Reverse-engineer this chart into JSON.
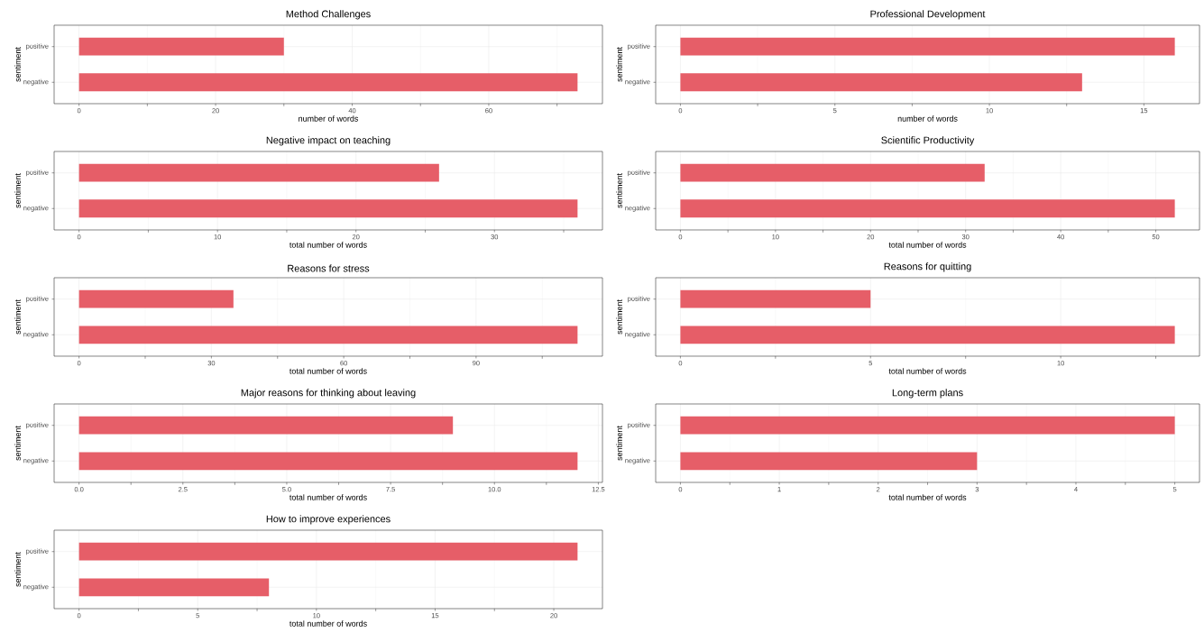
{
  "chart_data": [
    {
      "type": "bar",
      "orientation": "horizontal",
      "title": "Method Challenges",
      "xlabel": "number of words",
      "ylabel": "sentiment",
      "categories": [
        "positive",
        "negative"
      ],
      "values": [
        30,
        73
      ],
      "color": "#e65e68",
      "xlim": [
        -3.65,
        76.65
      ],
      "xticks": [
        0,
        20,
        40,
        60
      ],
      "grid": true
    },
    {
      "type": "bar",
      "orientation": "horizontal",
      "title": "Professional Development",
      "xlabel": "number of words",
      "ylabel": "sentiment",
      "categories": [
        "positive",
        "negative"
      ],
      "values": [
        16,
        13
      ],
      "color": "#e65e68",
      "xlim": [
        -0.8,
        16.8
      ],
      "xticks": [
        0,
        5,
        10,
        15
      ],
      "grid": true
    },
    {
      "type": "bar",
      "orientation": "horizontal",
      "title": "Negative impact on teaching",
      "xlabel": "total number of words",
      "ylabel": "sentiment",
      "categories": [
        "positive",
        "negative"
      ],
      "values": [
        26,
        36
      ],
      "color": "#e65e68",
      "xlim": [
        -1.8,
        37.8
      ],
      "xticks": [
        0,
        10,
        20,
        30
      ],
      "grid": true
    },
    {
      "type": "bar",
      "orientation": "horizontal",
      "title": "Scientific Productivity",
      "xlabel": "total number of words",
      "ylabel": "sentiment",
      "categories": [
        "positive",
        "negative"
      ],
      "values": [
        32,
        52
      ],
      "color": "#e65e68",
      "xlim": [
        -2.6,
        54.6
      ],
      "xticks": [
        0,
        10,
        20,
        30,
        40,
        50
      ],
      "grid": true
    },
    {
      "type": "bar",
      "orientation": "horizontal",
      "title": "Reasons for stress",
      "xlabel": "total number of words",
      "ylabel": "sentiment",
      "categories": [
        "positive",
        "negative"
      ],
      "values": [
        35,
        113
      ],
      "color": "#e65e68",
      "xlim": [
        -5.65,
        118.65
      ],
      "xticks": [
        0,
        30,
        60,
        90
      ],
      "grid": true
    },
    {
      "type": "bar",
      "orientation": "horizontal",
      "title": "Reasons for quitting",
      "xlabel": "total number of words",
      "ylabel": "sentiment",
      "categories": [
        "positive",
        "negative"
      ],
      "values": [
        5,
        13
      ],
      "color": "#e65e68",
      "xlim": [
        -0.65,
        13.65
      ],
      "xticks": [
        0,
        5,
        10
      ],
      "grid": true
    },
    {
      "type": "bar",
      "orientation": "horizontal",
      "title": "Major reasons for thinking about leaving",
      "xlabel": "total number of words",
      "ylabel": "sentiment",
      "categories": [
        "positive",
        "negative"
      ],
      "values": [
        9,
        12
      ],
      "color": "#e65e68",
      "xlim": [
        -0.6,
        12.6
      ],
      "xticks": [
        {
          "value": 0,
          "label": "0.0"
        },
        {
          "value": 2.5,
          "label": "2.5"
        },
        {
          "value": 5,
          "label": "5.0"
        },
        {
          "value": 7.5,
          "label": "7.5"
        },
        {
          "value": 10,
          "label": "10.0"
        },
        {
          "value": 12.5,
          "label": "12.5"
        }
      ],
      "grid": true
    },
    {
      "type": "bar",
      "orientation": "horizontal",
      "title": "Long-term plans",
      "xlabel": "total number of words",
      "ylabel": "sentiment",
      "categories": [
        "positive",
        "negative"
      ],
      "values": [
        5,
        3
      ],
      "color": "#e65e68",
      "xlim": [
        -0.25,
        5.25
      ],
      "xticks": [
        0,
        1,
        2,
        3,
        4,
        5
      ],
      "grid": true
    },
    {
      "type": "bar",
      "orientation": "horizontal",
      "title": "How to improve experiences",
      "xlabel": "total number of words",
      "ylabel": "sentiment",
      "categories": [
        "positive",
        "negative"
      ],
      "values": [
        21,
        8
      ],
      "color": "#e65e68",
      "xlim": [
        -1.05,
        22.05
      ],
      "xticks": [
        0,
        5,
        10,
        15,
        20
      ],
      "grid": true
    }
  ]
}
